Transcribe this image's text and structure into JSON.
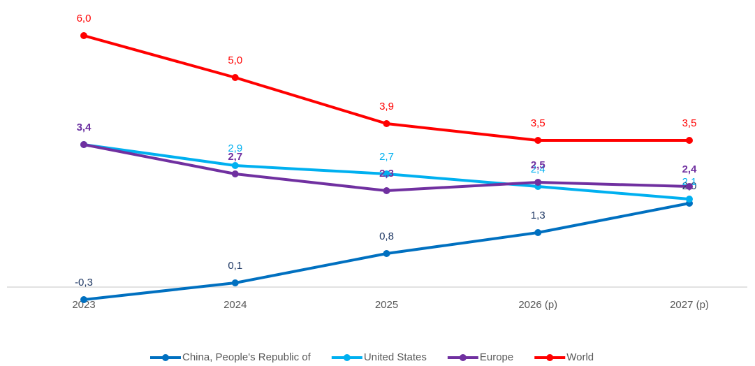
{
  "chart_data": {
    "type": "line",
    "categories": [
      "2023",
      "2024",
      "2025",
      "2026 (p)",
      "2027 (p)"
    ],
    "ylim": [
      -0.5,
      6.5
    ],
    "series": [
      {
        "name": "China, People's Republic of",
        "color": "#0070c0",
        "label_color": "#1f3864",
        "values": [
          -0.3,
          0.1,
          0.8,
          1.3,
          2.0
        ],
        "value_labels": [
          "-0,3",
          "0,1",
          "0,8",
          "1,3",
          "2,0"
        ]
      },
      {
        "name": "United States",
        "color": "#00b0f0",
        "label_color": "#00b0f0",
        "values": [
          3.4,
          2.9,
          2.7,
          2.4,
          2.1
        ],
        "value_labels": [
          "3,4",
          "2,9",
          "2,7",
          "2,4",
          "2,1"
        ]
      },
      {
        "name": "Europe",
        "color": "#7030a0",
        "label_color": "#7030a0",
        "values": [
          3.4,
          2.7,
          2.3,
          2.5,
          2.4
        ],
        "value_labels": [
          "3,4",
          "2,7",
          "2,3",
          "2,5",
          "2,4"
        ]
      },
      {
        "name": "World",
        "color": "#ff0000",
        "label_color": "#ff0000",
        "values": [
          6.0,
          5.0,
          3.9,
          3.5,
          3.5
        ],
        "value_labels": [
          "6,0",
          "5,0",
          "3,9",
          "3,5",
          "3,5"
        ]
      }
    ]
  }
}
